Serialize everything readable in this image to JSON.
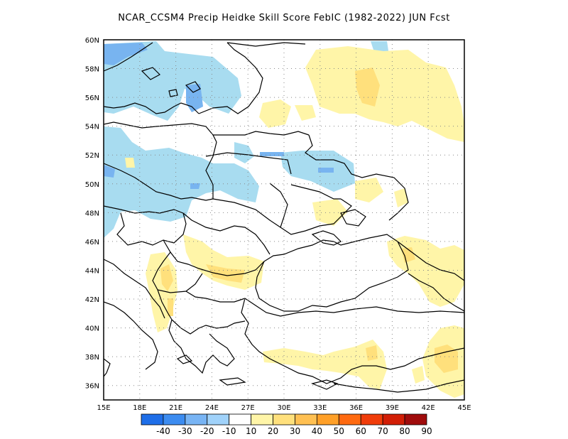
{
  "title": "NCAR_CCSM4 Precip Heidke Skill Score FebIC (1982-2022) JUN Fcst",
  "lat_labels": [
    "60N",
    "58N",
    "56N",
    "54N",
    "52N",
    "50N",
    "48N",
    "46N",
    "44N",
    "42N",
    "40N",
    "38N",
    "36N"
  ],
  "lon_labels": [
    "15E",
    "18E",
    "21E",
    "24E",
    "27E",
    "30E",
    "33E",
    "36E",
    "39E",
    "42E",
    "45E"
  ],
  "colorbar": {
    "labels": [
      "-40",
      "-30",
      "-20",
      "-10",
      "10",
      "20",
      "30",
      "40",
      "50",
      "60",
      "70",
      "80",
      "90"
    ],
    "colors": [
      "#1e6ee8",
      "#3c8cf0",
      "#78b4f4",
      "#a0d2fa",
      "#ffffff",
      "#fff5a8",
      "#ffe07c",
      "#ffc052",
      "#ffa028",
      "#ff6a10",
      "#f03c0a",
      "#d21e06",
      "#a00c0c"
    ]
  },
  "map": {
    "lon_range": [
      15,
      45
    ],
    "lat_range": [
      35,
      60
    ],
    "gridlines": "dotted"
  }
}
